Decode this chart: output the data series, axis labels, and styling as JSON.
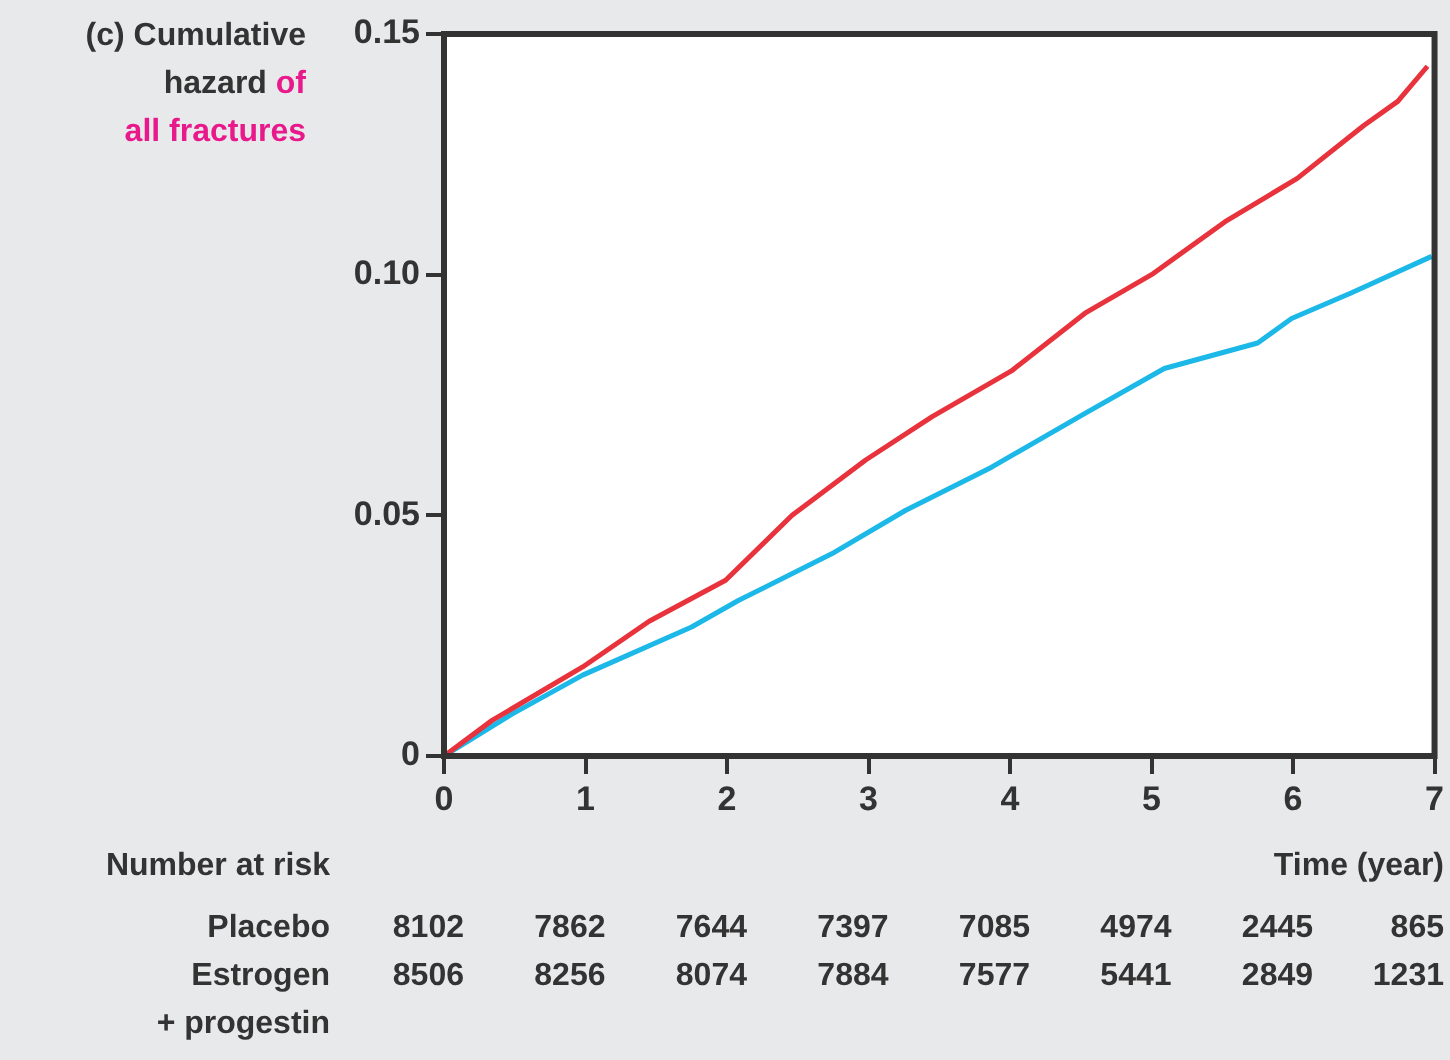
{
  "chart_data": {
    "type": "line",
    "ylabel": "(c) Cumulative hazard of all fractures",
    "xlabel": "Time (year)",
    "xlim": [
      0,
      7
    ],
    "xticks": [
      0,
      1,
      2,
      3,
      4,
      5,
      6,
      7
    ],
    "ylim": [
      0,
      0.15
    ],
    "yticks": [
      {
        "value": 0,
        "label": "0"
      },
      {
        "value": 0.05,
        "label": "0.05"
      },
      {
        "value": 0.1,
        "label": "0.10"
      },
      {
        "value": 0.15,
        "label": "0.15"
      }
    ],
    "grid": false,
    "legend": false,
    "marker": "none",
    "line_style": "solid",
    "series": [
      {
        "color": "#e8323c",
        "x": [
          0,
          0.34,
          0.98,
          1.45,
          1.99,
          2.46,
          2.98,
          3.45,
          4.01,
          4.53,
          5.0,
          5.52,
          6.03,
          6.5,
          6.74,
          6.95
        ],
        "values": [
          0,
          0.0074,
          0.0185,
          0.028,
          0.0365,
          0.05,
          0.0615,
          0.0705,
          0.08,
          0.092,
          0.1,
          0.111,
          0.12,
          0.131,
          0.136,
          0.1433
        ]
      },
      {
        "color": "#1bb8e8",
        "x": [
          0,
          0.48,
          0.98,
          1.75,
          2.08,
          2.74,
          3.26,
          3.87,
          4.53,
          5.09,
          5.75,
          5.99,
          6.41,
          6.98
        ],
        "values": [
          0,
          0.0087,
          0.0168,
          0.0268,
          0.0323,
          0.042,
          0.051,
          0.06,
          0.0712,
          0.0805,
          0.0858,
          0.0909,
          0.0962,
          0.1038
        ]
      }
    ],
    "annotations": [
      "Number at risk",
      "Placebo",
      "8102",
      "7862",
      "7644",
      "7397",
      "7085",
      "4974",
      "2445",
      "865",
      "Estrogen\n+ progestin",
      "8506",
      "8256",
      "8074",
      "7884",
      "7577",
      "5441",
      "2849",
      "1231"
    ]
  }
}
